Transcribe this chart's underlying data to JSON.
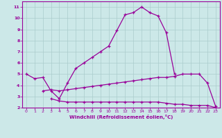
{
  "line1_x": [
    0,
    1,
    2,
    3,
    4,
    5,
    6,
    7,
    8,
    9,
    10,
    11,
    12,
    13,
    14,
    15,
    16,
    17,
    18
  ],
  "line1_y": [
    5.0,
    4.6,
    4.7,
    3.5,
    2.8,
    4.2,
    5.5,
    6.0,
    6.5,
    7.0,
    7.5,
    8.9,
    10.3,
    10.5,
    11.0,
    10.5,
    10.2,
    8.7,
    5.0
  ],
  "line2_x": [
    2,
    3,
    4,
    5,
    6,
    7,
    8,
    9,
    10,
    11,
    12,
    13,
    14,
    15,
    16,
    17,
    18,
    19,
    20,
    21,
    22,
    23
  ],
  "line2_y": [
    3.5,
    3.6,
    3.5,
    3.6,
    3.7,
    3.8,
    3.9,
    4.0,
    4.1,
    4.2,
    4.3,
    4.4,
    4.5,
    4.6,
    4.7,
    4.7,
    4.8,
    5.0,
    5.0,
    5.0,
    4.2,
    2.1
  ],
  "line3_x": [
    3,
    4,
    5,
    6,
    7,
    8,
    9,
    10,
    11,
    12,
    13,
    14,
    15,
    16,
    17,
    18,
    19,
    20,
    21,
    22,
    23
  ],
  "line3_y": [
    2.8,
    2.6,
    2.5,
    2.5,
    2.5,
    2.5,
    2.5,
    2.5,
    2.5,
    2.5,
    2.5,
    2.5,
    2.5,
    2.5,
    2.4,
    2.3,
    2.3,
    2.2,
    2.2,
    2.2,
    2.0
  ],
  "line_color": "#990099",
  "bg_color": "#cce8e8",
  "grid_color": "#aacccc",
  "axis_color": "#990099",
  "xlabel": "Windchill (Refroidissement éolien,°C)",
  "xlim": [
    -0.5,
    23.5
  ],
  "ylim": [
    2,
    11.5
  ],
  "xticks": [
    0,
    1,
    2,
    3,
    4,
    5,
    6,
    7,
    8,
    9,
    10,
    11,
    12,
    13,
    14,
    15,
    16,
    17,
    18,
    19,
    20,
    21,
    22,
    23
  ],
  "yticks": [
    2,
    3,
    4,
    5,
    6,
    7,
    8,
    9,
    10,
    11
  ]
}
